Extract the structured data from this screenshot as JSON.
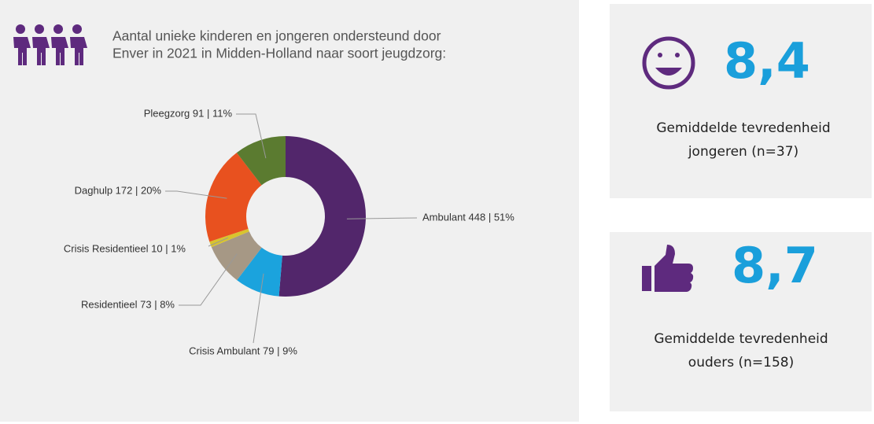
{
  "chart_data": {
    "type": "donut",
    "title": [
      "Aantal unieke kinderen en jongeren ondersteund door",
      "Enver in 2021 in Midden-Holland naar soort jeugdzorg:"
    ],
    "values": [
      448,
      79,
      73,
      10,
      172,
      91
    ],
    "value_labels": [
      "Ambulant 448 | 51%",
      "Crisis Ambulant 79 | 9%",
      "Residentieel 73 | 8%",
      "Crisis Residentieel 10 | 1%",
      "Daghulp 172 | 20%",
      "Pleegzorg 91 | 11%"
    ],
    "colors": [
      "#52266b",
      "#1ba3dd",
      "#a69885",
      "#d8c42e",
      "#e8511f",
      "#5b7b30"
    ]
  },
  "cards": [
    {
      "score": "8,4",
      "label": [
        "Gemiddelde tevredenheid",
        "jongeren (n=37)"
      ]
    },
    {
      "score": "8,7",
      "label": [
        "Gemiddelde tevredenheid",
        "ouders (n=158)"
      ]
    }
  ]
}
